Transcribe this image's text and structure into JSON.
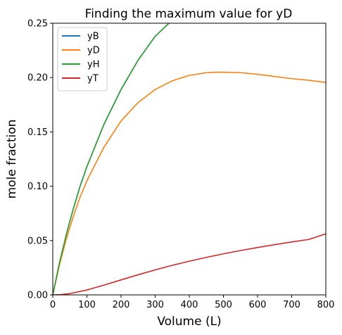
{
  "chart_data": {
    "type": "line",
    "title": "Finding the maximum value for yD",
    "xlabel": "Volume (L)",
    "ylabel": "mole fraction",
    "xlim": [
      0,
      800
    ],
    "ylim": [
      0,
      0.25
    ],
    "xticks": [
      0,
      100,
      200,
      300,
      400,
      500,
      600,
      700,
      800
    ],
    "yticks": [
      0.0,
      0.05,
      0.1,
      0.15,
      0.2,
      0.25
    ],
    "xtick_labels": [
      "0",
      "100",
      "200",
      "300",
      "400",
      "500",
      "600",
      "700",
      "800"
    ],
    "ytick_labels": [
      "0.00",
      "0.05",
      "0.10",
      "0.15",
      "0.20",
      "0.25"
    ],
    "grid": false,
    "legend_position": "top-left",
    "series": [
      {
        "name": "yB",
        "color": "#1f77b4",
        "x": [
          0,
          20,
          40,
          60,
          80,
          100,
          150,
          200,
          250,
          300,
          340
        ],
        "y": [
          0,
          0.03,
          0.056,
          0.079,
          0.1,
          0.118,
          0.157,
          0.189,
          0.216,
          0.238,
          0.25
        ]
      },
      {
        "name": "yD",
        "color": "#ff7f0e",
        "x": [
          0,
          20,
          40,
          60,
          80,
          100,
          150,
          200,
          250,
          300,
          350,
          400,
          450,
          490,
          550,
          600,
          650,
          700,
          750,
          800
        ],
        "y": [
          0,
          0.028,
          0.052,
          0.072,
          0.09,
          0.105,
          0.136,
          0.16,
          0.177,
          0.189,
          0.197,
          0.202,
          0.2045,
          0.205,
          0.2045,
          0.203,
          0.201,
          0.199,
          0.1975,
          0.1955
        ]
      },
      {
        "name": "yH",
        "color": "#2ca02c",
        "x": [
          0,
          20,
          40,
          60,
          80,
          100,
          150,
          200,
          250,
          300,
          340
        ],
        "y": [
          0,
          0.03,
          0.056,
          0.079,
          0.1,
          0.118,
          0.157,
          0.189,
          0.216,
          0.238,
          0.25
        ]
      },
      {
        "name": "yT",
        "color": "#d62728",
        "x": [
          0,
          25,
          50,
          100,
          150,
          200,
          250,
          300,
          350,
          400,
          450,
          500,
          550,
          600,
          650,
          700,
          750,
          800
        ],
        "y": [
          0,
          0.0003,
          0.0012,
          0.0045,
          0.009,
          0.0138,
          0.0185,
          0.023,
          0.0272,
          0.031,
          0.0345,
          0.0378,
          0.0408,
          0.0436,
          0.0462,
          0.0487,
          0.051,
          0.0562
        ]
      }
    ]
  }
}
